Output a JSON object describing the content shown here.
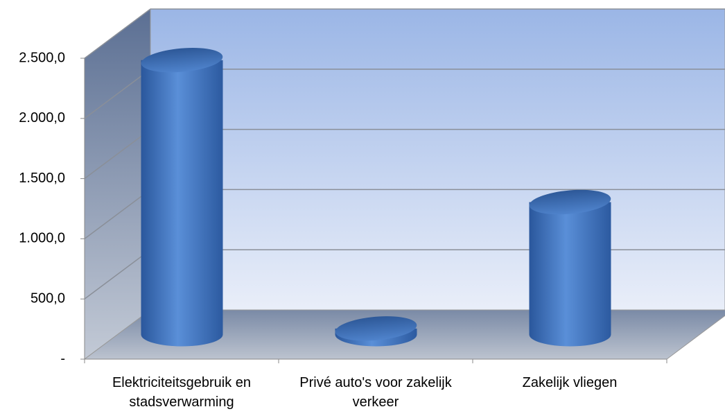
{
  "chart_data": {
    "type": "bar3d",
    "categories": [
      "Elektriciteitsgebruik en stadsverwarming",
      "Privé auto's voor zakelijk verkeer",
      "Zakelijk vliegen"
    ],
    "values": [
      2280,
      50,
      1100
    ],
    "color": "#4a7cc7",
    "ylim": [
      0,
      2500
    ],
    "yticks": [
      {
        "value": 0,
        "label": "-"
      },
      {
        "value": 500,
        "label": "500,0"
      },
      {
        "value": 1000,
        "label": "1.000,0"
      },
      {
        "value": 1500,
        "label": "1.500,0"
      },
      {
        "value": 2000,
        "label": "2.000,0"
      },
      {
        "value": 2500,
        "label": "2.500,0"
      }
    ],
    "grid": true
  }
}
